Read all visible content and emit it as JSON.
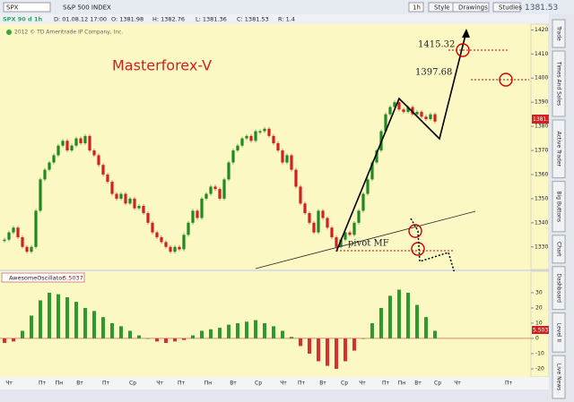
{
  "toolbar": {
    "symbol": "SPX",
    "description": "S&P 500 INDEX",
    "aggregation": "1h",
    "buttons": [
      "Style",
      "Drawings",
      "Studies"
    ],
    "last_price": "1381.53"
  },
  "header": {
    "fields": [
      "SPX 90 d 1h",
      "D: 01.08.12 17:00",
      "O: 1381.98",
      "H: 1382.76",
      "L: 1381.36",
      "C: 1381.53",
      "R: 1.4"
    ]
  },
  "copyright": "2012 © TD Ameritrade IP Company, Inc.",
  "sidebar": [
    "Trade",
    "Times And Sales",
    "Active Trader",
    "Big Buttons",
    "Chart",
    "Dashboard",
    "Level II",
    "Live News"
  ],
  "price_chart": {
    "title": "Masterforex-V",
    "annotations": [
      "1415.32",
      "1397.68",
      "pivot MF"
    ],
    "closes": [
      1333,
      1336,
      1338,
      1334,
      1330,
      1328,
      1330,
      1345,
      1358,
      1362,
      1365,
      1368,
      1372,
      1374,
      1370,
      1372,
      1375,
      1373,
      1376,
      1370,
      1368,
      1364,
      1360,
      1357,
      1352,
      1350,
      1352,
      1348,
      1350,
      1346,
      1347,
      1344,
      1340,
      1336,
      1334,
      1332,
      1330,
      1328,
      1330,
      1329,
      1335,
      1340,
      1345,
      1342,
      1350,
      1352,
      1355,
      1354,
      1350,
      1358,
      1365,
      1370,
      1372,
      1375,
      1376,
      1374,
      1378,
      1378,
      1379,
      1376,
      1373,
      1370,
      1365,
      1368,
      1362,
      1355,
      1348,
      1344,
      1340,
      1336,
      1345,
      1342,
      1338,
      1334,
      1330,
      1333,
      1336,
      1335,
      1340,
      1345,
      1352,
      1358,
      1365,
      1370,
      1378,
      1385,
      1388,
      1390,
      1387,
      1386,
      1388,
      1385,
      1386,
      1384,
      1383,
      1385,
      1382
    ],
    "ylim": [
      1321,
      1422
    ],
    "yticks": [
      1330,
      1340,
      1350,
      1360,
      1370,
      1380,
      1390,
      1400,
      1410,
      1420
    ]
  },
  "oscillator": {
    "name": "AwesomeOscillator",
    "value": "5.5037",
    "values": [
      -3,
      -2,
      5,
      15,
      25,
      30,
      29,
      27,
      24,
      20,
      18,
      14,
      10,
      8,
      5,
      2,
      0,
      -2,
      -3,
      -2,
      -1,
      2,
      5,
      6,
      7,
      9,
      10,
      11,
      12,
      10,
      8,
      5,
      1,
      -5,
      -10,
      -15,
      -18,
      -20,
      -15,
      -8,
      0,
      10,
      20,
      28,
      32,
      30,
      22,
      14,
      5
    ],
    "ylim": [
      -24.7,
      42.9
    ],
    "yticks": [
      -20,
      -10,
      0,
      10,
      20,
      30
    ]
  },
  "x_labels": [
    "Чт",
    "Пт",
    "Пн",
    "Вт",
    "Пт",
    "Ср",
    "Чт",
    "Пт",
    "Пн",
    "Вт",
    "Ср",
    "Чт",
    "Пт",
    "Вт",
    "Ср",
    "Чт",
    "Пт",
    "Пн",
    "Вт",
    "Ср",
    "Чт",
    "Пт"
  ]
}
